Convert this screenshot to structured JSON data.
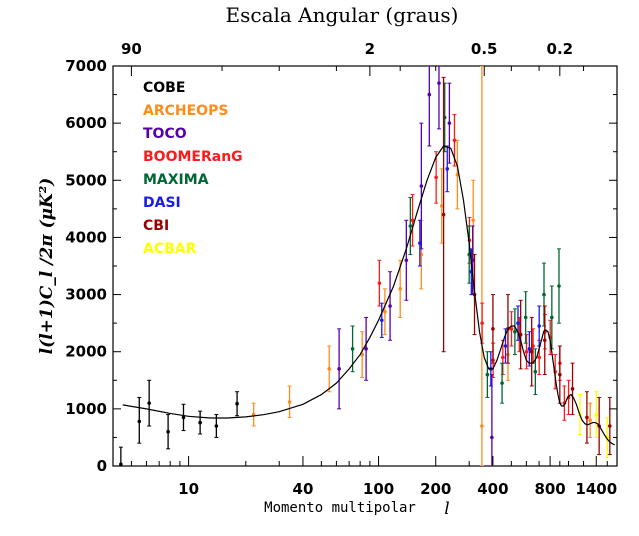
{
  "chart_data": {
    "type": "scatter",
    "title": "Escala Angular (graus)",
    "xlabel": "Momento multipolar",
    "xlabel_symbol": "l",
    "ylabel": "l(l+1)C_l /2π (μK²)",
    "x_scale": "log",
    "xlim": [
      4,
      1800
    ],
    "ylim": [
      0,
      7000
    ],
    "x_ticks": [
      10,
      40,
      100,
      200,
      400,
      800,
      1400
    ],
    "x_tick_labels": [
      "10",
      "40",
      "100",
      "200",
      "400",
      "800",
      "1400"
    ],
    "y_ticks": [
      0,
      1000,
      2000,
      3000,
      4000,
      5000,
      6000,
      7000
    ],
    "y_tick_labels": [
      "0",
      "1000",
      "2000",
      "3000",
      "4000",
      "5000",
      "6000",
      "7000"
    ],
    "top_axis": {
      "label": "Escala Angular (graus)",
      "ticks": [
        {
          "label": "90",
          "l": 5
        },
        {
          "label": "2",
          "l": 90
        },
        {
          "label": "0.5",
          "l": 360
        },
        {
          "label": "0.2",
          "l": 900
        }
      ]
    },
    "legend_placement": "top-left",
    "series": [
      {
        "name": "COBE",
        "color": "#000000",
        "points": [
          {
            "x": 4.4,
            "y": 30,
            "lo": 0,
            "hi": 330
          },
          {
            "x": 5.5,
            "y": 780,
            "lo": 400,
            "hi": 1200
          },
          {
            "x": 6.2,
            "y": 1100,
            "lo": 700,
            "hi": 1500
          },
          {
            "x": 7.8,
            "y": 600,
            "lo": 300,
            "hi": 900
          },
          {
            "x": 9.4,
            "y": 850,
            "lo": 620,
            "hi": 1080
          },
          {
            "x": 11.5,
            "y": 760,
            "lo": 560,
            "hi": 960
          },
          {
            "x": 14.0,
            "y": 700,
            "lo": 500,
            "hi": 900
          },
          {
            "x": 18.0,
            "y": 1090,
            "lo": 880,
            "hi": 1300
          }
        ]
      },
      {
        "name": "ARCHEOPS",
        "color": "#ff8c1a",
        "points": [
          {
            "x": 22,
            "y": 900,
            "lo": 700,
            "hi": 1100
          },
          {
            "x": 34,
            "y": 1120,
            "lo": 850,
            "hi": 1400
          },
          {
            "x": 55,
            "y": 1700,
            "lo": 1300,
            "hi": 2100
          },
          {
            "x": 82,
            "y": 1950,
            "lo": 1550,
            "hi": 2350
          },
          {
            "x": 108,
            "y": 2700,
            "lo": 2300,
            "hi": 3100
          },
          {
            "x": 130,
            "y": 3100,
            "lo": 2600,
            "hi": 3600
          },
          {
            "x": 168,
            "y": 3700,
            "lo": 3100,
            "hi": 4300
          },
          {
            "x": 215,
            "y": 4550,
            "lo": 3900,
            "hi": 5200
          },
          {
            "x": 260,
            "y": 5100,
            "lo": 4500,
            "hi": 5700
          },
          {
            "x": 315,
            "y": 4300,
            "lo": 3600,
            "hi": 5000
          },
          {
            "x": 350,
            "y": 700,
            "lo": 0,
            "hi": 7000
          },
          {
            "x": 480,
            "y": 1950,
            "lo": 1500,
            "hi": 2400
          },
          {
            "x": 1300,
            "y": 800,
            "lo": 500,
            "hi": 1100
          }
        ]
      },
      {
        "name": "TOCO",
        "color": "#5500aa",
        "points": [
          {
            "x": 62,
            "y": 1700,
            "lo": 1000,
            "hi": 2400
          },
          {
            "x": 86,
            "y": 2050,
            "lo": 1500,
            "hi": 2600
          },
          {
            "x": 115,
            "y": 2800,
            "lo": 2200,
            "hi": 3400
          },
          {
            "x": 140,
            "y": 3600,
            "lo": 2900,
            "hi": 4300
          },
          {
            "x": 168,
            "y": 4900,
            "lo": 3800,
            "hi": 6000
          },
          {
            "x": 185,
            "y": 6500,
            "lo": 5600,
            "hi": 7000
          },
          {
            "x": 208,
            "y": 6700,
            "lo": 5900,
            "hi": 7000
          },
          {
            "x": 236,
            "y": 6000,
            "lo": 5300,
            "hi": 6700
          },
          {
            "x": 313,
            "y": 3600,
            "lo": 3000,
            "hi": 4200
          },
          {
            "x": 395,
            "y": 500,
            "lo": 0,
            "hi": 1600
          }
        ]
      },
      {
        "name": "BOOMERanG",
        "color": "#ff1a1a",
        "points": [
          {
            "x": 101,
            "y": 3200,
            "lo": 2800,
            "hi": 3600
          },
          {
            "x": 151,
            "y": 4300,
            "lo": 3850,
            "hi": 4750
          },
          {
            "x": 201,
            "y": 5050,
            "lo": 4600,
            "hi": 5500
          },
          {
            "x": 251,
            "y": 5700,
            "lo": 5250,
            "hi": 6150
          },
          {
            "x": 301,
            "y": 3950,
            "lo": 3550,
            "hi": 4350
          },
          {
            "x": 351,
            "y": 2500,
            "lo": 2150,
            "hi": 2850
          },
          {
            "x": 401,
            "y": 1850,
            "lo": 1550,
            "hi": 2150
          },
          {
            "x": 451,
            "y": 1900,
            "lo": 1600,
            "hi": 2200
          },
          {
            "x": 501,
            "y": 2400,
            "lo": 2100,
            "hi": 2700
          },
          {
            "x": 551,
            "y": 2300,
            "lo": 2000,
            "hi": 2600
          },
          {
            "x": 601,
            "y": 2000,
            "lo": 1700,
            "hi": 2300
          },
          {
            "x": 651,
            "y": 2100,
            "lo": 1800,
            "hi": 2400
          },
          {
            "x": 701,
            "y": 1900,
            "lo": 1600,
            "hi": 2200
          },
          {
            "x": 751,
            "y": 2350,
            "lo": 2050,
            "hi": 2650
          },
          {
            "x": 801,
            "y": 2250,
            "lo": 1950,
            "hi": 2550
          },
          {
            "x": 851,
            "y": 1650,
            "lo": 1350,
            "hi": 1950
          },
          {
            "x": 901,
            "y": 1800,
            "lo": 1500,
            "hi": 2100
          },
          {
            "x": 951,
            "y": 1100,
            "lo": 800,
            "hi": 1400
          },
          {
            "x": 1001,
            "y": 1200,
            "lo": 900,
            "hi": 1500
          }
        ]
      },
      {
        "name": "MAXIMA",
        "color": "#006633",
        "points": [
          {
            "x": 73,
            "y": 2050,
            "lo": 1650,
            "hi": 2450
          },
          {
            "x": 147,
            "y": 4200,
            "lo": 3700,
            "hi": 4700
          },
          {
            "x": 223,
            "y": 6100,
            "lo": 5500,
            "hi": 6700
          },
          {
            "x": 300,
            "y": 3700,
            "lo": 3200,
            "hi": 4200
          },
          {
            "x": 374,
            "y": 1600,
            "lo": 1200,
            "hi": 2000
          },
          {
            "x": 447,
            "y": 1450,
            "lo": 1100,
            "hi": 1800
          },
          {
            "x": 522,
            "y": 2350,
            "lo": 1950,
            "hi": 2750
          },
          {
            "x": 595,
            "y": 2600,
            "lo": 2150,
            "hi": 3050
          },
          {
            "x": 669,
            "y": 1650,
            "lo": 1250,
            "hi": 2050
          },
          {
            "x": 743,
            "y": 3000,
            "lo": 2450,
            "hi": 3550
          },
          {
            "x": 817,
            "y": 2600,
            "lo": 2050,
            "hi": 3150
          },
          {
            "x": 891,
            "y": 3150,
            "lo": 2500,
            "hi": 3800
          }
        ]
      },
      {
        "name": "DASI",
        "color": "#1a1aee",
        "points": [
          {
            "x": 104,
            "y": 2550,
            "lo": 2250,
            "hi": 2850
          },
          {
            "x": 165,
            "y": 3900,
            "lo": 3500,
            "hi": 4300
          },
          {
            "x": 230,
            "y": 5200,
            "lo": 4800,
            "hi": 5600
          },
          {
            "x": 308,
            "y": 3400,
            "lo": 3000,
            "hi": 3800
          },
          {
            "x": 390,
            "y": 1700,
            "lo": 1400,
            "hi": 2000
          },
          {
            "x": 466,
            "y": 2100,
            "lo": 1800,
            "hi": 2400
          },
          {
            "x": 542,
            "y": 2500,
            "lo": 2200,
            "hi": 2800
          },
          {
            "x": 622,
            "y": 2050,
            "lo": 1750,
            "hi": 2350
          },
          {
            "x": 701,
            "y": 2450,
            "lo": 2100,
            "hi": 2800
          }
        ]
      },
      {
        "name": "CBI",
        "color": "#990000",
        "points": [
          {
            "x": 220,
            "y": 4400,
            "lo": 2000,
            "hi": 6800
          },
          {
            "x": 320,
            "y": 3000,
            "lo": 2300,
            "hi": 3700
          },
          {
            "x": 400,
            "y": 2400,
            "lo": 1800,
            "hi": 3000
          },
          {
            "x": 480,
            "y": 2400,
            "lo": 1800,
            "hi": 3000
          },
          {
            "x": 560,
            "y": 2300,
            "lo": 1700,
            "hi": 2900
          },
          {
            "x": 640,
            "y": 2000,
            "lo": 1400,
            "hi": 2600
          },
          {
            "x": 750,
            "y": 2200,
            "lo": 1600,
            "hi": 2800
          },
          {
            "x": 900,
            "y": 1600,
            "lo": 1100,
            "hi": 2100
          },
          {
            "x": 1050,
            "y": 1350,
            "lo": 900,
            "hi": 1800
          },
          {
            "x": 1250,
            "y": 850,
            "lo": 400,
            "hi": 1300
          },
          {
            "x": 1450,
            "y": 700,
            "lo": 200,
            "hi": 1200
          },
          {
            "x": 1650,
            "y": 700,
            "lo": 200,
            "hi": 1200
          }
        ]
      },
      {
        "name": "ACBAR",
        "color": "#ffff00",
        "points": [
          {
            "x": 1150,
            "y": 900,
            "lo": 550,
            "hi": 1250
          },
          {
            "x": 1400,
            "y": 900,
            "lo": 500,
            "hi": 1300
          },
          {
            "x": 1600,
            "y": 500,
            "lo": 150,
            "hi": 850
          }
        ]
      }
    ],
    "model_curve": {
      "color": "#000000",
      "x": [
        4.5,
        6,
        8,
        10,
        13,
        16,
        20,
        25,
        30,
        40,
        50,
        60,
        70,
        80,
        90,
        100,
        120,
        140,
        160,
        180,
        200,
        220,
        240,
        260,
        280,
        300,
        320,
        340,
        360,
        380,
        400,
        420,
        440,
        460,
        480,
        500,
        520,
        540,
        560,
        580,
        600,
        620,
        650,
        680,
        700,
        720,
        740,
        760,
        780,
        800,
        820,
        840,
        860,
        880,
        900,
        920,
        940,
        960,
        980,
        1000,
        1030,
        1060,
        1100,
        1140,
        1180,
        1220,
        1260,
        1300,
        1340,
        1380,
        1420,
        1460,
        1500,
        1550,
        1600,
        1650,
        1700,
        1750
      ],
      "y": [
        1070,
        1000,
        920,
        870,
        840,
        840,
        860,
        900,
        950,
        1080,
        1250,
        1450,
        1700,
        1950,
        2250,
        2550,
        3150,
        3800,
        4450,
        5000,
        5400,
        5600,
        5560,
        5250,
        4650,
        3900,
        3050,
        2350,
        1900,
        1700,
        1700,
        1850,
        2050,
        2250,
        2400,
        2450,
        2450,
        2350,
        2200,
        2000,
        1850,
        1800,
        1800,
        1900,
        2050,
        2200,
        2350,
        2380,
        2350,
        2200,
        1950,
        1700,
        1450,
        1250,
        1100,
        1050,
        1050,
        1100,
        1170,
        1220,
        1250,
        1200,
        1080,
        920,
        800,
        740,
        720,
        740,
        760,
        760,
        740,
        690,
        620,
        540,
        470,
        420,
        390,
        370
      ]
    }
  }
}
